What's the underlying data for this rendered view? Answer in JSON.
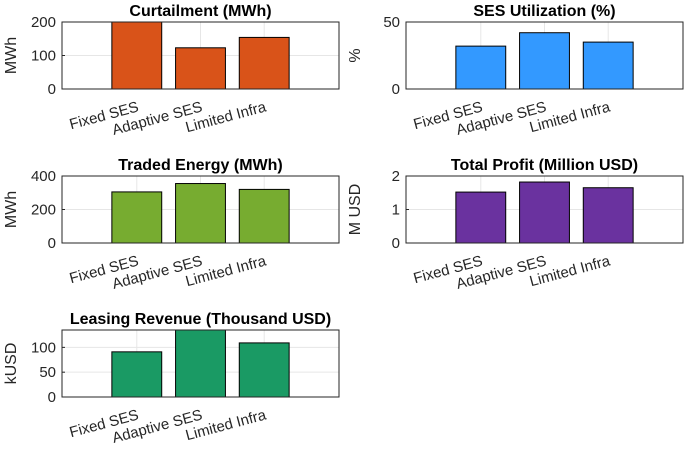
{
  "chart_data": [
    {
      "type": "bar",
      "title": "Curtailment (MWh)",
      "ylabel": "MWh",
      "categories": [
        "Fixed SES",
        "Adaptive SES",
        "Limited Infra"
      ],
      "values": [
        200,
        123,
        154
      ],
      "ylim": [
        0,
        200
      ],
      "yticks": [
        0,
        100,
        200
      ],
      "color": "#D95319",
      "grid": true
    },
    {
      "type": "bar",
      "title": "SES Utilization (%)",
      "ylabel": "%",
      "categories": [
        "Fixed SES",
        "Adaptive SES",
        "Limited Infra"
      ],
      "values": [
        32,
        42,
        35
      ],
      "ylim": [
        0,
        50
      ],
      "yticks": [
        0,
        50
      ],
      "color": "#3399FF",
      "grid": true
    },
    {
      "type": "bar",
      "title": "Traded Energy (MWh)",
      "ylabel": "MWh",
      "categories": [
        "Fixed SES",
        "Adaptive SES",
        "Limited Infra"
      ],
      "values": [
        305,
        355,
        320
      ],
      "ylim": [
        0,
        400
      ],
      "yticks": [
        0,
        200,
        400
      ],
      "color": "#77AC30",
      "grid": true
    },
    {
      "type": "bar",
      "title": "Total Profit (Million USD)",
      "ylabel": "M USD",
      "categories": [
        "Fixed SES",
        "Adaptive SES",
        "Limited Infra"
      ],
      "values": [
        1.52,
        1.82,
        1.65
      ],
      "ylim": [
        0,
        2
      ],
      "yticks": [
        0,
        1,
        2
      ],
      "color": "#6A329F",
      "grid": true
    },
    {
      "type": "bar",
      "title": "Leasing Revenue (Thousand USD)",
      "ylabel": "kUSD",
      "categories": [
        "Fixed SES",
        "Adaptive SES",
        "Limited Infra"
      ],
      "values": [
        91,
        135,
        109
      ],
      "ylim": [
        0,
        135
      ],
      "yticks": [
        0,
        50,
        100
      ],
      "color": "#1A9A64",
      "grid": true
    }
  ]
}
